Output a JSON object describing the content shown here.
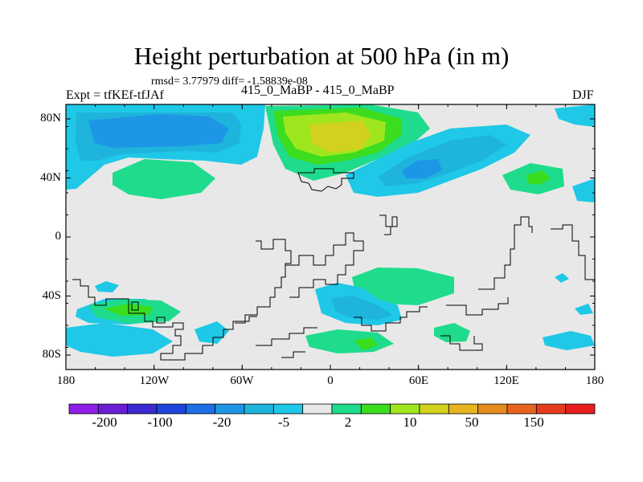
{
  "header": {
    "title": "Height perturbation at 500 hPa (in m)",
    "stats": "rmsd= 3.77979 diff= -1.58839e-08",
    "experiment": "Expt = tfKEf-tfJAf",
    "center": "415_0_MaBP - 415_0_MaBP",
    "season": "DJF"
  },
  "map": {
    "y_ticks": [
      "80N",
      "40N",
      "0",
      "40S",
      "80S"
    ],
    "x_ticks": [
      "180",
      "120W",
      "60W",
      "0",
      "60E",
      "120E",
      "180"
    ],
    "background_color": "#e8e8e8"
  },
  "colorbar": {
    "labels": [
      "-200",
      "-100",
      "-20",
      "-5",
      "2",
      "10",
      "50",
      "150"
    ],
    "colors": [
      "#8e1ee6",
      "#6a1ed6",
      "#3c2ad0",
      "#1e46dc",
      "#1e6ee6",
      "#1e96e6",
      "#1eb4dc",
      "#1ec8e6",
      "#e8e8e8",
      "#1edc8c",
      "#3cdc1e",
      "#a0e61e",
      "#d2d21e",
      "#e6b41e",
      "#e68c1e",
      "#e6641e",
      "#e63c1e",
      "#e61e1e"
    ]
  }
}
